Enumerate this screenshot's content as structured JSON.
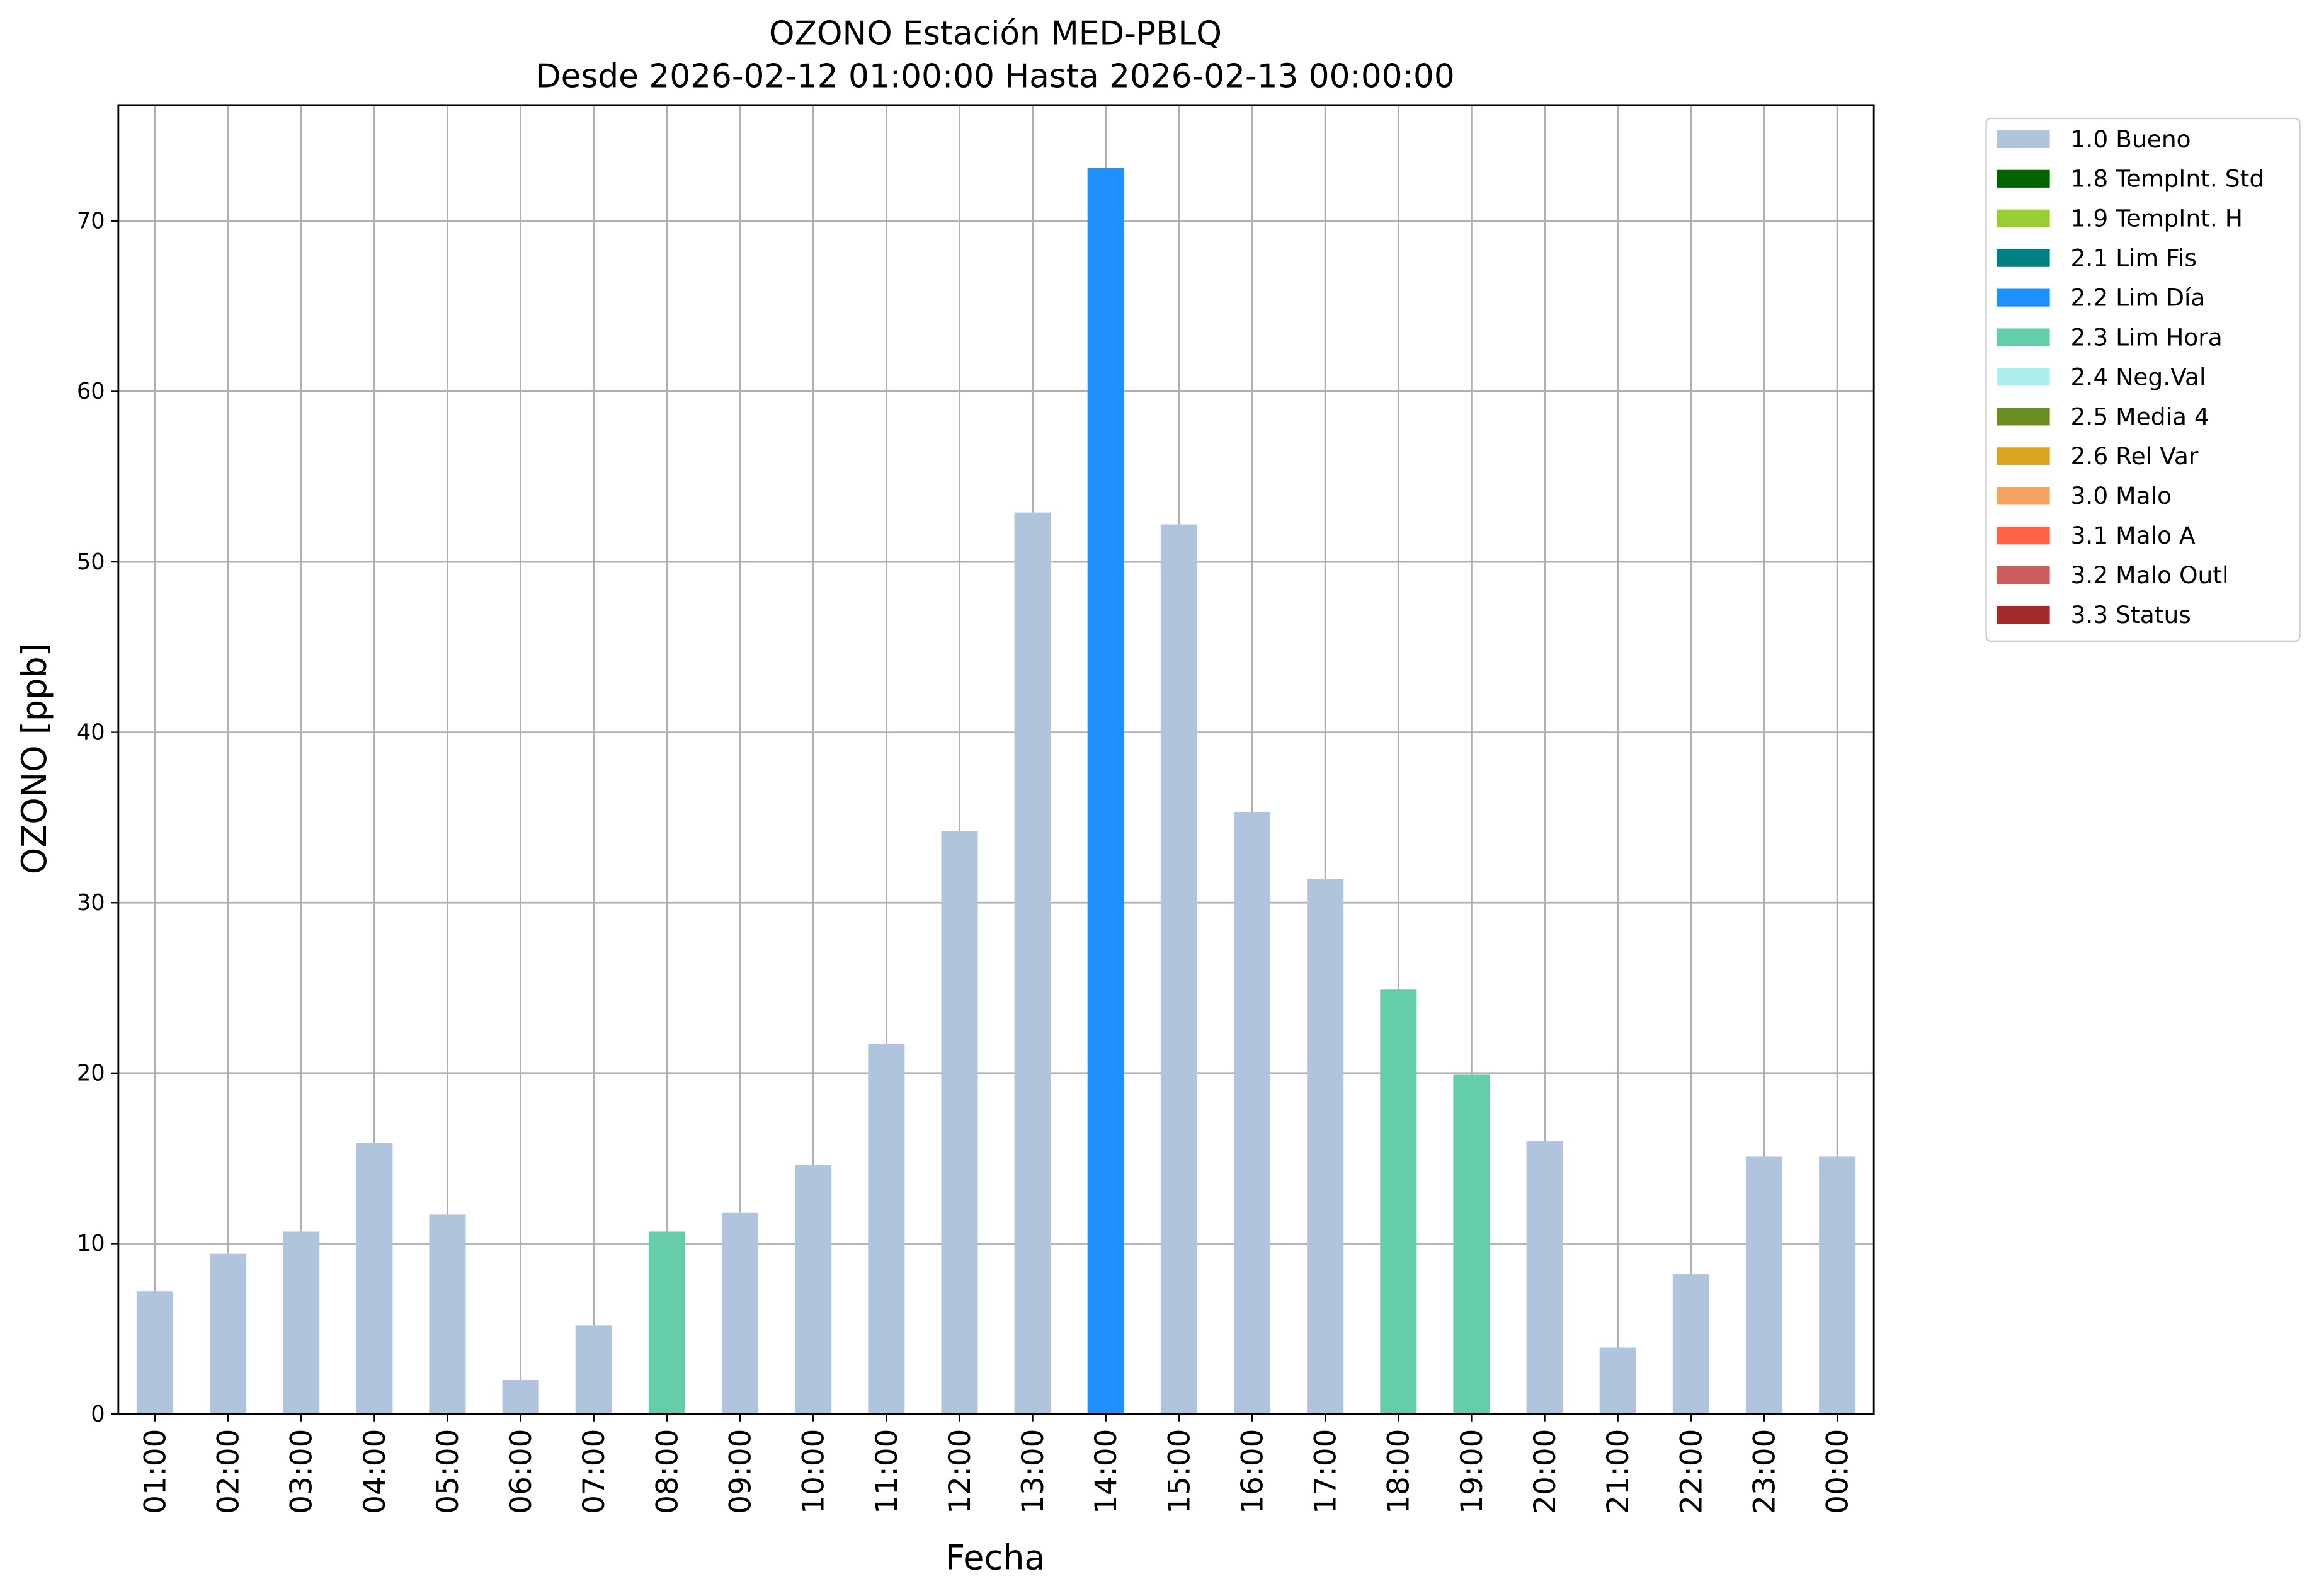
{
  "chart_data": {
    "type": "stacked_bar",
    "title": "OZONO Estación MED-PBLQ",
    "subtitle": "Desde 2026-02-12 01:00:00 Hasta 2026-02-13 00:00:00",
    "x_label": "Fecha",
    "y_label": "OZONO [ppb]",
    "categories": [
      "01:00",
      "02:00",
      "03:00",
      "04:00",
      "05:00",
      "06:00",
      "07:00",
      "08:00",
      "09:00",
      "10:00",
      "11:00",
      "12:00",
      "13:00",
      "14:00",
      "15:00",
      "16:00",
      "17:00",
      "18:00",
      "19:00",
      "20:00",
      "21:00",
      "22:00",
      "23:00",
      "00:00"
    ],
    "series": [
      {
        "name": "1.0 Bueno",
        "color": "#b0c4de",
        "values": [
          7.2,
          9.4,
          10.7,
          15.9,
          11.7,
          2.0,
          5.2,
          null,
          11.8,
          14.6,
          21.7,
          34.2,
          52.9,
          null,
          52.2,
          35.3,
          31.4,
          null,
          null,
          16.0,
          3.9,
          8.2,
          15.1,
          15.1
        ]
      },
      {
        "name": "1.8 TempInt. Std",
        "color": "#006400",
        "values": [
          null,
          null,
          null,
          null,
          null,
          null,
          null,
          null,
          null,
          null,
          null,
          null,
          null,
          null,
          null,
          null,
          null,
          null,
          null,
          null,
          null,
          null,
          null,
          null
        ]
      },
      {
        "name": "1.9 TempInt. H",
        "color": "#9acd32",
        "values": [
          null,
          null,
          null,
          null,
          null,
          null,
          null,
          null,
          null,
          null,
          null,
          null,
          null,
          null,
          null,
          null,
          null,
          null,
          null,
          null,
          null,
          null,
          null,
          null
        ]
      },
      {
        "name": "2.1 Lim Fis",
        "color": "#008080",
        "values": [
          null,
          null,
          null,
          null,
          null,
          null,
          null,
          null,
          null,
          null,
          null,
          null,
          null,
          null,
          null,
          null,
          null,
          null,
          null,
          null,
          null,
          null,
          null,
          null
        ]
      },
      {
        "name": "2.2 Lim Día",
        "color": "#1e90ff",
        "values": [
          null,
          null,
          null,
          null,
          null,
          null,
          null,
          null,
          null,
          null,
          null,
          null,
          null,
          73.1,
          null,
          null,
          null,
          null,
          null,
          null,
          null,
          null,
          null,
          null
        ]
      },
      {
        "name": "2.3 Lim Hora",
        "color": "#66cdaa",
        "values": [
          null,
          null,
          null,
          null,
          null,
          null,
          null,
          10.7,
          null,
          null,
          null,
          null,
          null,
          null,
          null,
          null,
          null,
          24.9,
          19.9,
          null,
          null,
          null,
          null,
          null
        ]
      },
      {
        "name": "2.4 Neg.Val",
        "color": "#afeeee",
        "values": [
          null,
          null,
          null,
          null,
          null,
          null,
          null,
          null,
          null,
          null,
          null,
          null,
          null,
          null,
          null,
          null,
          null,
          null,
          null,
          null,
          null,
          null,
          null,
          null
        ]
      },
      {
        "name": "2.5 Media 4",
        "color": "#6b8e23",
        "values": [
          null,
          null,
          null,
          null,
          null,
          null,
          null,
          null,
          null,
          null,
          null,
          null,
          null,
          null,
          null,
          null,
          null,
          null,
          null,
          null,
          null,
          null,
          null,
          null
        ]
      },
      {
        "name": "2.6 Rel Var",
        "color": "#daa520",
        "values": [
          null,
          null,
          null,
          null,
          null,
          null,
          null,
          null,
          null,
          null,
          null,
          null,
          null,
          null,
          null,
          null,
          null,
          null,
          null,
          null,
          null,
          null,
          null,
          null
        ]
      },
      {
        "name": "3.0 Malo",
        "color": "#f4a460",
        "values": [
          null,
          null,
          null,
          null,
          null,
          null,
          null,
          null,
          null,
          null,
          null,
          null,
          null,
          null,
          null,
          null,
          null,
          null,
          null,
          null,
          null,
          null,
          null,
          null
        ]
      },
      {
        "name": "3.1 Malo A",
        "color": "#ff6347",
        "values": [
          null,
          null,
          null,
          null,
          null,
          null,
          null,
          null,
          null,
          null,
          null,
          null,
          null,
          null,
          null,
          null,
          null,
          null,
          null,
          null,
          null,
          null,
          null,
          null
        ]
      },
      {
        "name": "3.2 Malo Outl",
        "color": "#cd5c5c",
        "values": [
          null,
          null,
          null,
          null,
          null,
          null,
          null,
          null,
          null,
          null,
          null,
          null,
          null,
          null,
          null,
          null,
          null,
          null,
          null,
          null,
          null,
          null,
          null,
          null
        ]
      },
      {
        "name": "3.3 Status",
        "color": "#a52a2a",
        "values": [
          null,
          null,
          null,
          null,
          null,
          null,
          null,
          null,
          null,
          null,
          null,
          null,
          null,
          null,
          null,
          null,
          null,
          null,
          null,
          null,
          null,
          null,
          null,
          null
        ]
      }
    ],
    "ylim": [
      0,
      76.8
    ],
    "yticks": [
      0,
      10,
      20,
      30,
      40,
      50,
      60,
      70
    ],
    "grid": true,
    "legend": "outside-right"
  }
}
